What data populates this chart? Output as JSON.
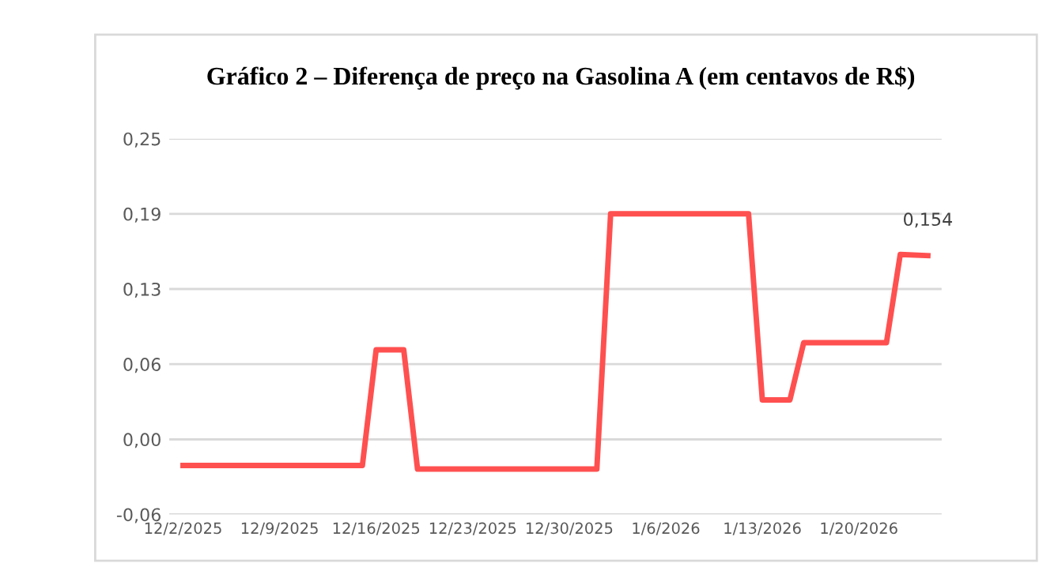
{
  "chart_data": {
    "type": "line",
    "title": "Gráfico 2 – Diferença de preço na Gasolina A (em centavos de R$)",
    "x": [
      "2025-12-02",
      "2025-12-15",
      "2025-12-16",
      "2025-12-18",
      "2025-12-19",
      "2026-01-01",
      "2026-01-02",
      "2026-01-12",
      "2026-01-13",
      "2026-01-15",
      "2026-01-16",
      "2026-01-22",
      "2026-01-23",
      "2026-01-25"
    ],
    "series": [
      {
        "color": "#ff5050",
        "values": [
          -0.022,
          -0.022,
          0.075,
          0.075,
          -0.025,
          -0.025,
          0.189,
          0.189,
          0.033,
          0.033,
          0.081,
          0.081,
          0.155,
          0.154
        ]
      }
    ],
    "annotations": [
      {
        "text": "0,154",
        "x": "2026-01-25",
        "y": 0.154
      }
    ],
    "xlim": [
      "2025-12-01",
      "2026-01-26"
    ],
    "xticks": [
      {
        "value": "2025-12-02",
        "label": "12/2/2025"
      },
      {
        "value": "2025-12-09",
        "label": "12/9/2025"
      },
      {
        "value": "2025-12-16",
        "label": "12/16/2025"
      },
      {
        "value": "2025-12-23",
        "label": "12/23/2025"
      },
      {
        "value": "2025-12-30",
        "label": "12/30/2025"
      },
      {
        "value": "2026-01-06",
        "label": "1/6/2026"
      },
      {
        "value": "2026-01-13",
        "label": "1/13/2026"
      },
      {
        "value": "2026-01-20",
        "label": "1/20/2026"
      }
    ],
    "ylim": [
      -0.063,
      0.252
    ],
    "yticks": [
      {
        "value": -0.063,
        "label": "-0,06"
      },
      {
        "value": 0,
        "label": "0,00"
      },
      {
        "value": 0.063,
        "label": "0,06"
      },
      {
        "value": 0.126,
        "label": "0,13"
      },
      {
        "value": 0.189,
        "label": "0,19"
      },
      {
        "value": 0.252,
        "label": "0,25"
      }
    ],
    "grid": "y",
    "legend": false,
    "marker": "none",
    "line_style": "solid"
  }
}
